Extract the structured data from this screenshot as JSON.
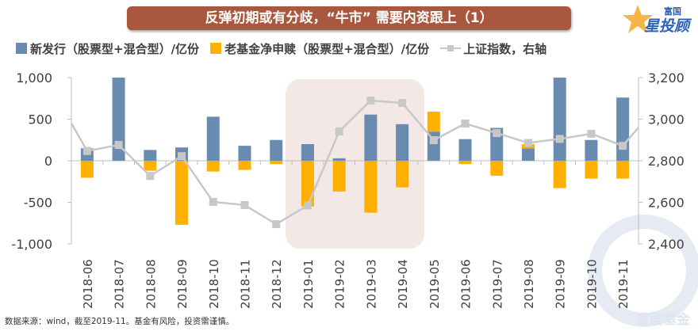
{
  "title": "反弹初期或有分歧，“牛市” 需要内资跟上（1）",
  "logo": {
    "top": "富国",
    "main": "星投顾"
  },
  "watermark": "富国基金",
  "footer": "数据来源：wind，截至2019-11。基金有风险，投资需谨慎。",
  "colors": {
    "new_issue": "#6a8bb0",
    "redemption": "#ffb000",
    "index": "#c8c8c8",
    "banner": "#a9583f",
    "highlight": "#f3e8e5"
  },
  "chart_data": {
    "type": "bar",
    "categories": [
      "2018-06",
      "2018-07",
      "2018-08",
      "2018-09",
      "2018-10",
      "2018-11",
      "2018-12",
      "2019-01",
      "2019-02",
      "2019-03",
      "2019-04",
      "2019-05",
      "2019-06",
      "2019-07",
      "2019-08",
      "2019-09",
      "2019-10",
      "2019-11"
    ],
    "series": [
      {
        "name": "新发行（股票型+混合型）/亿份",
        "type": "bar",
        "axis": "left",
        "values": [
          150,
          1000,
          130,
          160,
          530,
          180,
          250,
          200,
          30,
          555,
          440,
          350,
          260,
          395,
          150,
          1000,
          250,
          760
        ]
      },
      {
        "name": "老基金净申赎（股票型+混合型）/亿份",
        "type": "bar",
        "axis": "left",
        "values": [
          -205,
          0,
          -120,
          -770,
          -130,
          -110,
          -40,
          -550,
          -370,
          -625,
          -320,
          240,
          -40,
          -180,
          50,
          -330,
          -215,
          -215
        ]
      },
      {
        "name": "上证指数，右轴",
        "type": "line",
        "axis": "right",
        "values": [
          2847,
          2876,
          2727,
          2822,
          2602,
          2587,
          2495,
          2585,
          2941,
          3090,
          3078,
          2899,
          2979,
          2933,
          2886,
          2905,
          2930,
          2872
        ]
      }
    ],
    "left_axis": {
      "range": [
        -1000,
        1000
      ],
      "ticks": [
        "1,000",
        "500",
        "0",
        "-500",
        "-1,000"
      ]
    },
    "right_axis": {
      "range": [
        2400,
        3200
      ],
      "ticks": [
        "3,200",
        "3,000",
        "2,800",
        "2,600",
        "2,400"
      ]
    },
    "highlight_range": [
      "2019-01",
      "2019-04"
    ],
    "legend": "top",
    "grid": false
  }
}
